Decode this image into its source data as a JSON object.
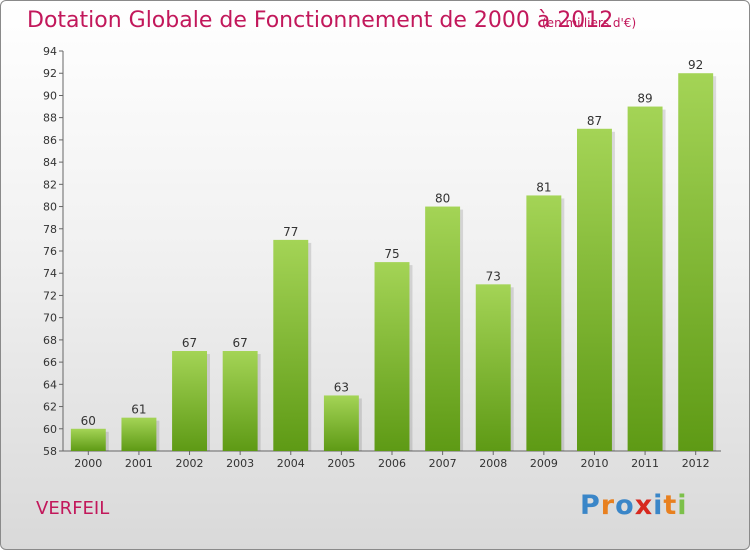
{
  "header": {
    "title": "Dotation Globale de Fonctionnement de 2000 à 2012",
    "unit": "(en milliers d'€)"
  },
  "commune": "VERFEIL",
  "logo": {
    "text": "Proxiti",
    "colors": [
      "#3a86c8",
      "#e8801f",
      "#3a86c8",
      "#d7281e",
      "#3a86c8",
      "#e8801f",
      "#7cc04a"
    ]
  },
  "colors": {
    "bar_light": "#a4d456",
    "bar_dark": "#5e9a15",
    "accent": "#c2185b"
  },
  "chart_data": {
    "type": "bar",
    "title": "Dotation Globale de Fonctionnement de 2000 à 2012",
    "subtitle": "(en milliers d'€)",
    "xlabel": "",
    "ylabel": "",
    "categories": [
      "2000",
      "2001",
      "2002",
      "2003",
      "2004",
      "2005",
      "2006",
      "2007",
      "2008",
      "2009",
      "2010",
      "2011",
      "2012"
    ],
    "values": [
      60,
      61,
      67,
      67,
      77,
      63,
      75,
      80,
      73,
      81,
      87,
      89,
      92
    ],
    "ylim": [
      58,
      94
    ],
    "yticks": [
      58,
      60,
      62,
      64,
      66,
      68,
      70,
      72,
      74,
      76,
      78,
      80,
      82,
      84,
      86,
      88,
      90,
      92,
      94
    ],
    "grid": false,
    "legend": "none"
  }
}
